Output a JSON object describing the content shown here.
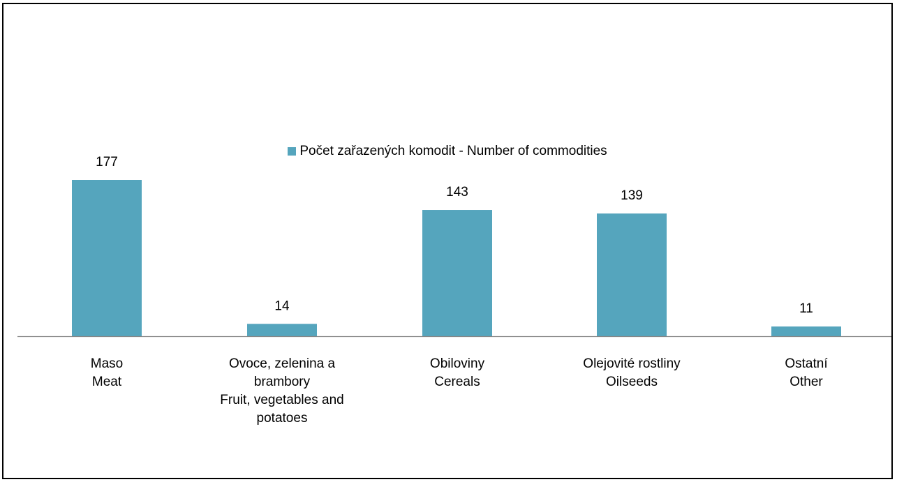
{
  "chart_data": {
    "type": "bar",
    "categories": [
      [
        "Maso",
        "Meat"
      ],
      [
        "Ovoce, zelenina a",
        "brambory",
        "Fruit, vegetables and",
        "potatoes"
      ],
      [
        "Obiloviny",
        "Cereals"
      ],
      [
        "Olejovité rostliny",
        "Oilseeds"
      ],
      [
        "Ostatní",
        "Other"
      ]
    ],
    "series": [
      {
        "name": "Počet zařazených komodit - Number of commodities",
        "values": [
          177,
          14,
          143,
          139,
          11
        ]
      }
    ],
    "ylim": [
      0,
      177
    ],
    "legend": "top-center",
    "grid": false,
    "color": "#55A5BD"
  }
}
